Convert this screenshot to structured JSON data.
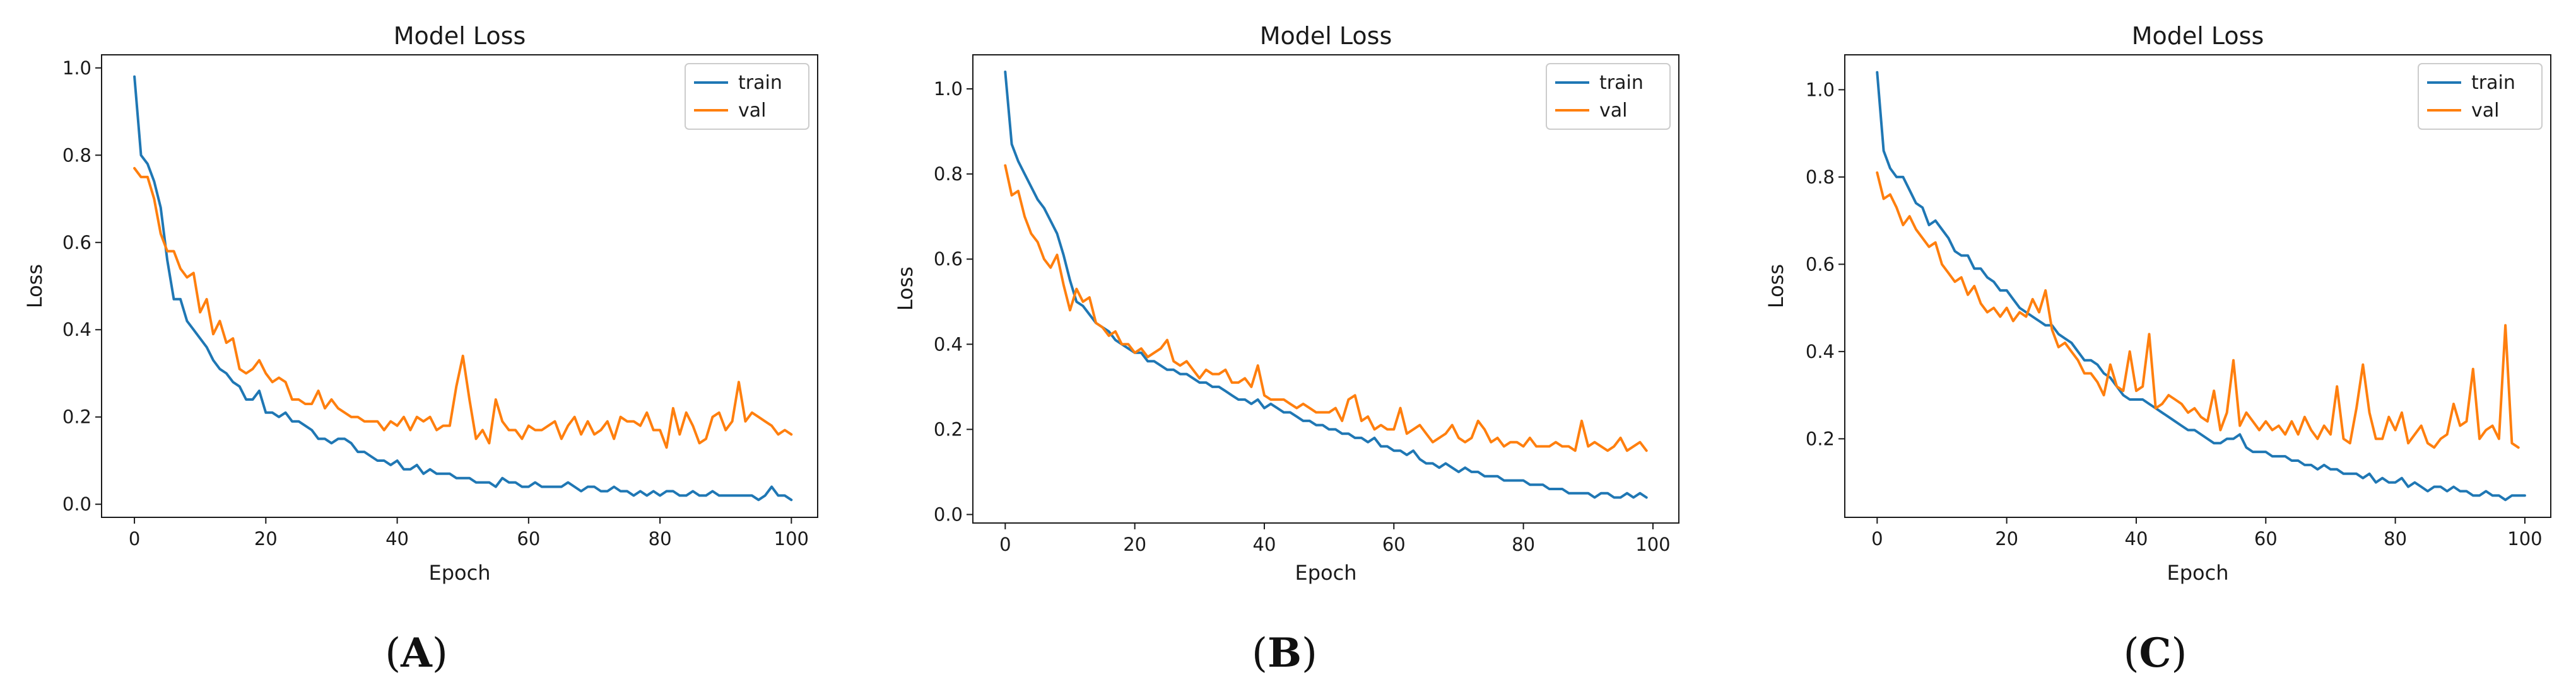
{
  "colors": {
    "train": "#1f77b4",
    "val": "#ff7f0e",
    "axis": "#1a1a1a"
  },
  "chart_data": [
    {
      "type": "line",
      "panel_label": "(A)",
      "panel_letter": "A",
      "title": "Model Loss",
      "xlabel": "Epoch",
      "ylabel": "Loss",
      "xlim": [
        -5,
        104
      ],
      "ylim": [
        -0.03,
        1.03
      ],
      "xticks": [
        0,
        20,
        40,
        60,
        80,
        100
      ],
      "xtick_labels": [
        "0",
        "20",
        "40",
        "60",
        "80",
        "100"
      ],
      "yticks": [
        0.0,
        0.2,
        0.4,
        0.6,
        0.8,
        1.0
      ],
      "ytick_labels": [
        "0.0",
        "0.2",
        "0.4",
        "0.6",
        "0.8",
        "1.0"
      ],
      "legend": {
        "position": "top-right",
        "entries": [
          "train",
          "val"
        ]
      },
      "series": [
        {
          "name": "train",
          "values": [
            0.98,
            0.8,
            0.78,
            0.74,
            0.68,
            0.56,
            0.47,
            0.47,
            0.42,
            0.4,
            0.38,
            0.36,
            0.33,
            0.31,
            0.3,
            0.28,
            0.27,
            0.24,
            0.24,
            0.26,
            0.21,
            0.21,
            0.2,
            0.21,
            0.19,
            0.19,
            0.18,
            0.17,
            0.15,
            0.15,
            0.14,
            0.15,
            0.15,
            0.14,
            0.12,
            0.12,
            0.11,
            0.1,
            0.1,
            0.09,
            0.1,
            0.08,
            0.08,
            0.09,
            0.07,
            0.08,
            0.07,
            0.07,
            0.07,
            0.06,
            0.06,
            0.06,
            0.05,
            0.05,
            0.05,
            0.04,
            0.06,
            0.05,
            0.05,
            0.04,
            0.04,
            0.05,
            0.04,
            0.04,
            0.04,
            0.04,
            0.05,
            0.04,
            0.03,
            0.04,
            0.04,
            0.03,
            0.03,
            0.04,
            0.03,
            0.03,
            0.02,
            0.03,
            0.02,
            0.03,
            0.02,
            0.03,
            0.03,
            0.02,
            0.02,
            0.03,
            0.02,
            0.02,
            0.03,
            0.02,
            0.02,
            0.02,
            0.02,
            0.02,
            0.02,
            0.01,
            0.02,
            0.04,
            0.02,
            0.02,
            0.01
          ]
        },
        {
          "name": "val",
          "values": [
            0.77,
            0.75,
            0.75,
            0.7,
            0.62,
            0.58,
            0.58,
            0.54,
            0.52,
            0.53,
            0.44,
            0.47,
            0.39,
            0.42,
            0.37,
            0.38,
            0.31,
            0.3,
            0.31,
            0.33,
            0.3,
            0.28,
            0.29,
            0.28,
            0.24,
            0.24,
            0.23,
            0.23,
            0.26,
            0.22,
            0.24,
            0.22,
            0.21,
            0.2,
            0.2,
            0.19,
            0.19,
            0.19,
            0.17,
            0.19,
            0.18,
            0.2,
            0.17,
            0.2,
            0.19,
            0.2,
            0.17,
            0.18,
            0.18,
            0.27,
            0.34,
            0.24,
            0.15,
            0.17,
            0.14,
            0.24,
            0.19,
            0.17,
            0.17,
            0.15,
            0.18,
            0.17,
            0.17,
            0.18,
            0.19,
            0.15,
            0.18,
            0.2,
            0.16,
            0.19,
            0.16,
            0.17,
            0.19,
            0.15,
            0.2,
            0.19,
            0.19,
            0.18,
            0.21,
            0.17,
            0.17,
            0.13,
            0.22,
            0.16,
            0.21,
            0.18,
            0.14,
            0.15,
            0.2,
            0.21,
            0.17,
            0.19,
            0.28,
            0.19,
            0.21,
            0.2,
            0.19,
            0.18,
            0.16,
            0.17,
            0.16
          ]
        }
      ]
    },
    {
      "type": "line",
      "panel_label": "(B)",
      "panel_letter": "B",
      "title": "Model Loss",
      "xlabel": "Epoch",
      "ylabel": "Loss",
      "xlim": [
        -5,
        104
      ],
      "ylim": [
        -0.02,
        1.08
      ],
      "xticks": [
        0,
        20,
        40,
        60,
        80,
        100
      ],
      "xtick_labels": [
        "0",
        "20",
        "40",
        "60",
        "80",
        "100"
      ],
      "yticks": [
        0.0,
        0.2,
        0.4,
        0.6,
        0.8,
        1.0
      ],
      "ytick_labels": [
        "0.0",
        "0.2",
        "0.4",
        "0.6",
        "0.8",
        "1.0"
      ],
      "legend": {
        "position": "top-right",
        "entries": [
          "train",
          "val"
        ]
      },
      "series": [
        {
          "name": "train",
          "values": [
            1.04,
            0.87,
            0.83,
            0.8,
            0.77,
            0.74,
            0.72,
            0.69,
            0.66,
            0.61,
            0.55,
            0.5,
            0.49,
            0.47,
            0.45,
            0.44,
            0.43,
            0.41,
            0.4,
            0.39,
            0.38,
            0.38,
            0.36,
            0.36,
            0.35,
            0.34,
            0.34,
            0.33,
            0.33,
            0.32,
            0.31,
            0.31,
            0.3,
            0.3,
            0.29,
            0.28,
            0.27,
            0.27,
            0.26,
            0.27,
            0.25,
            0.26,
            0.25,
            0.24,
            0.24,
            0.23,
            0.22,
            0.22,
            0.21,
            0.21,
            0.2,
            0.2,
            0.19,
            0.19,
            0.18,
            0.18,
            0.17,
            0.18,
            0.16,
            0.16,
            0.15,
            0.15,
            0.14,
            0.15,
            0.13,
            0.12,
            0.12,
            0.11,
            0.12,
            0.11,
            0.1,
            0.11,
            0.1,
            0.1,
            0.09,
            0.09,
            0.09,
            0.08,
            0.08,
            0.08,
            0.08,
            0.07,
            0.07,
            0.07,
            0.06,
            0.06,
            0.06,
            0.05,
            0.05,
            0.05,
            0.05,
            0.04,
            0.05,
            0.05,
            0.04,
            0.04,
            0.05,
            0.04,
            0.05,
            0.04
          ]
        },
        {
          "name": "val",
          "values": [
            0.82,
            0.75,
            0.76,
            0.7,
            0.66,
            0.64,
            0.6,
            0.58,
            0.61,
            0.54,
            0.48,
            0.53,
            0.5,
            0.51,
            0.45,
            0.44,
            0.42,
            0.43,
            0.4,
            0.4,
            0.38,
            0.39,
            0.37,
            0.38,
            0.39,
            0.41,
            0.36,
            0.35,
            0.36,
            0.34,
            0.32,
            0.34,
            0.33,
            0.33,
            0.34,
            0.31,
            0.31,
            0.32,
            0.3,
            0.35,
            0.28,
            0.27,
            0.27,
            0.27,
            0.26,
            0.25,
            0.26,
            0.25,
            0.24,
            0.24,
            0.24,
            0.25,
            0.22,
            0.27,
            0.28,
            0.22,
            0.23,
            0.2,
            0.21,
            0.2,
            0.2,
            0.25,
            0.19,
            0.2,
            0.21,
            0.19,
            0.17,
            0.18,
            0.19,
            0.21,
            0.18,
            0.17,
            0.18,
            0.22,
            0.2,
            0.17,
            0.18,
            0.16,
            0.17,
            0.17,
            0.16,
            0.18,
            0.16,
            0.16,
            0.16,
            0.17,
            0.16,
            0.16,
            0.15,
            0.22,
            0.16,
            0.17,
            0.16,
            0.15,
            0.16,
            0.18,
            0.15,
            0.16,
            0.17,
            0.15
          ]
        }
      ]
    },
    {
      "type": "line",
      "panel_label": "(C)",
      "panel_letter": "C",
      "title": "Model Loss",
      "xlabel": "Epoch",
      "ylabel": "Loss",
      "xlim": [
        -5,
        104
      ],
      "ylim": [
        0.02,
        1.08
      ],
      "xticks": [
        0,
        20,
        40,
        60,
        80,
        100
      ],
      "xtick_labels": [
        "0",
        "20",
        "40",
        "60",
        "80",
        "100"
      ],
      "yticks": [
        0.2,
        0.4,
        0.6,
        0.8,
        1.0
      ],
      "ytick_labels": [
        "0.2",
        "0.4",
        "0.6",
        "0.8",
        "1.0"
      ],
      "legend": {
        "position": "top-right",
        "entries": [
          "train",
          "val"
        ]
      },
      "series": [
        {
          "name": "train",
          "values": [
            1.04,
            0.86,
            0.82,
            0.8,
            0.8,
            0.77,
            0.74,
            0.73,
            0.69,
            0.7,
            0.68,
            0.66,
            0.63,
            0.62,
            0.62,
            0.59,
            0.59,
            0.57,
            0.56,
            0.54,
            0.54,
            0.52,
            0.5,
            0.49,
            0.48,
            0.47,
            0.46,
            0.46,
            0.44,
            0.43,
            0.42,
            0.4,
            0.38,
            0.38,
            0.37,
            0.35,
            0.34,
            0.32,
            0.3,
            0.29,
            0.29,
            0.29,
            0.28,
            0.27,
            0.26,
            0.25,
            0.24,
            0.23,
            0.22,
            0.22,
            0.21,
            0.2,
            0.19,
            0.19,
            0.2,
            0.2,
            0.21,
            0.18,
            0.17,
            0.17,
            0.17,
            0.16,
            0.16,
            0.16,
            0.15,
            0.15,
            0.14,
            0.14,
            0.13,
            0.14,
            0.13,
            0.13,
            0.12,
            0.12,
            0.12,
            0.11,
            0.12,
            0.1,
            0.11,
            0.1,
            0.1,
            0.11,
            0.09,
            0.1,
            0.09,
            0.08,
            0.09,
            0.09,
            0.08,
            0.09,
            0.08,
            0.08,
            0.07,
            0.07,
            0.08,
            0.07,
            0.07,
            0.06,
            0.07,
            0.07,
            0.07
          ]
        },
        {
          "name": "val",
          "values": [
            0.81,
            0.75,
            0.76,
            0.73,
            0.69,
            0.71,
            0.68,
            0.66,
            0.64,
            0.65,
            0.6,
            0.58,
            0.56,
            0.57,
            0.53,
            0.55,
            0.51,
            0.49,
            0.5,
            0.48,
            0.5,
            0.47,
            0.49,
            0.48,
            0.52,
            0.49,
            0.54,
            0.45,
            0.41,
            0.42,
            0.4,
            0.38,
            0.35,
            0.35,
            0.33,
            0.3,
            0.37,
            0.32,
            0.31,
            0.4,
            0.31,
            0.32,
            0.44,
            0.27,
            0.28,
            0.3,
            0.29,
            0.28,
            0.26,
            0.27,
            0.25,
            0.24,
            0.31,
            0.22,
            0.26,
            0.38,
            0.23,
            0.26,
            0.24,
            0.22,
            0.24,
            0.22,
            0.23,
            0.21,
            0.24,
            0.21,
            0.25,
            0.22,
            0.2,
            0.23,
            0.21,
            0.32,
            0.2,
            0.19,
            0.27,
            0.37,
            0.26,
            0.2,
            0.2,
            0.25,
            0.22,
            0.26,
            0.19,
            0.21,
            0.23,
            0.19,
            0.18,
            0.2,
            0.21,
            0.28,
            0.23,
            0.24,
            0.36,
            0.2,
            0.22,
            0.23,
            0.2,
            0.46,
            0.19,
            0.18
          ]
        }
      ]
    }
  ]
}
